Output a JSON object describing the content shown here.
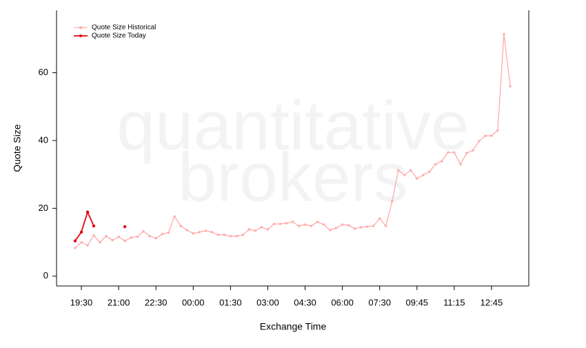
{
  "chart_data": {
    "type": "line",
    "watermark": [
      "quantitative",
      "brokers"
    ],
    "x_label": "Exchange Time",
    "y_label": "Quote Size",
    "categories": [
      null,
      "19:30",
      null,
      null,
      null,
      null,
      null,
      "21:00",
      null,
      null,
      null,
      null,
      null,
      "22:30",
      null,
      null,
      null,
      null,
      null,
      "00:00",
      null,
      null,
      null,
      null,
      null,
      "01:30",
      null,
      null,
      null,
      null,
      null,
      "03:00",
      null,
      null,
      null,
      null,
      null,
      "04:30",
      null,
      null,
      null,
      null,
      null,
      "06:00",
      null,
      null,
      null,
      null,
      null,
      "07:30",
      null,
      null,
      null,
      null,
      null,
      "09:45",
      null,
      null,
      null,
      null,
      null,
      "11:15",
      null,
      null,
      null,
      null,
      null,
      "12:45",
      null,
      null,
      null
    ],
    "series": [
      {
        "name": "Quote Size Historical",
        "color": "#ffaaaa",
        "values": [
          8.3,
          10,
          9.1,
          12,
          10,
          11.8,
          10.6,
          11.6,
          10.4,
          11.4,
          11.6,
          13.2,
          11.8,
          11.2,
          12.4,
          12.8,
          17.6,
          14.8,
          13.6,
          12.6,
          13,
          13.4,
          13,
          12.2,
          12.2,
          11.8,
          11.8,
          12.2,
          13.8,
          13.4,
          14.4,
          13.8,
          15.4,
          15.4,
          15.6,
          16,
          14.8,
          15.2,
          14.8,
          16,
          15.2,
          13.6,
          14.2,
          15.2,
          15,
          14,
          14.4,
          14.6,
          14.8,
          17,
          14.8,
          22.1,
          31.2,
          29.8,
          31.2,
          28.8,
          29.8,
          30.8,
          33,
          33.9,
          36.5,
          36.5,
          33,
          36.3,
          37.1,
          39.8,
          41.4,
          41.4,
          43,
          71.4,
          56
        ]
      },
      {
        "name": "Quote Size Today",
        "color": "#e8000b",
        "values": [
          10.4,
          13,
          18.9,
          14.8,
          null,
          null,
          null,
          null,
          14.6,
          null,
          null,
          null,
          null,
          null,
          null,
          null,
          null,
          null,
          null,
          null,
          null,
          null,
          null,
          null,
          null,
          null,
          null,
          null,
          null,
          null,
          null,
          null,
          null,
          null,
          null,
          null,
          null,
          null,
          null,
          null,
          null,
          null,
          null,
          null,
          null,
          null,
          null,
          null,
          null,
          null,
          null,
          null,
          null,
          null,
          null,
          null,
          null,
          null,
          null,
          null,
          null,
          null,
          null,
          null,
          null,
          null,
          null,
          null,
          null,
          null,
          null
        ]
      }
    ],
    "ylim": [
      -2.9,
      78.4
    ],
    "yticks": [
      0,
      20,
      40,
      60
    ],
    "legend": "top-left"
  }
}
